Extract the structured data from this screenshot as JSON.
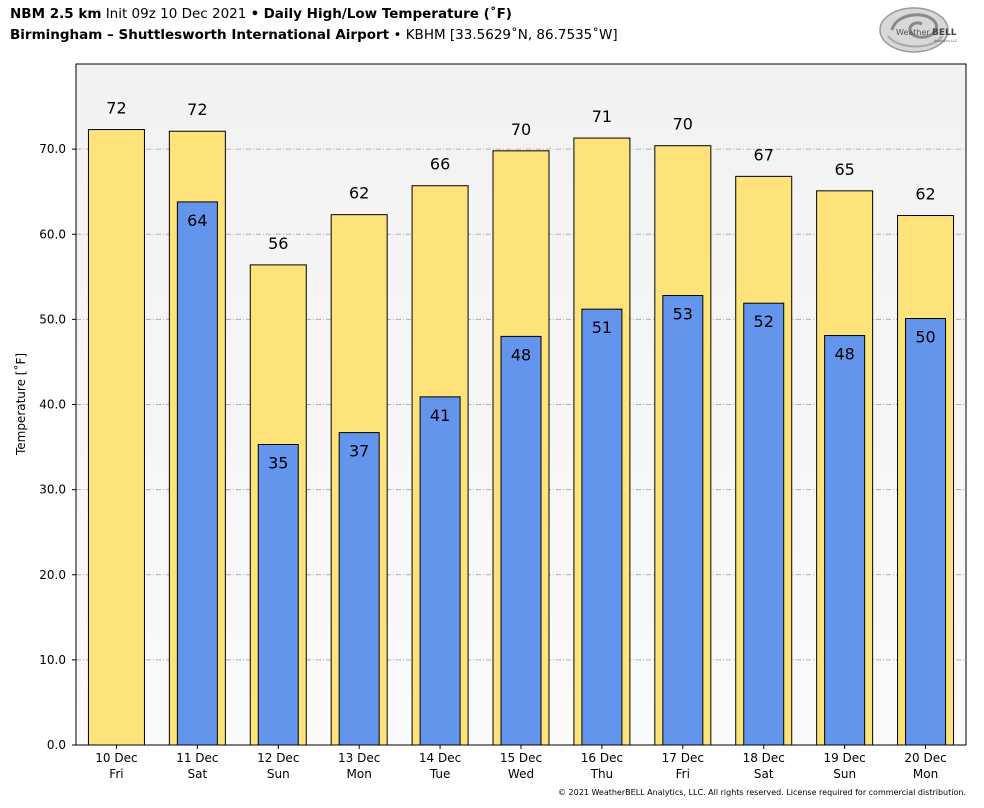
{
  "header": {
    "model": "NBM 2.5 km",
    "init": "Init 09z 10 Dec 2021",
    "sep1": "•",
    "product": "Daily High/Low Temperature (˚F)",
    "location": "Birmingham – Shuttlesworth International Airport",
    "sep2": "•",
    "station": "KBHM [33.5629˚N, 86.7535˚W]"
  },
  "logo": {
    "text_weather": "Weather",
    "text_bell": "BELL",
    "text_sub": "Analytics LLC"
  },
  "copyright": "© 2021 WeatherBELL Analytics, LLC. All rights reserved. License required for commercial distribution.",
  "colors": {
    "high": "#fee37b",
    "low": "#6495ed",
    "plot_bg_top": "#f2f2f2",
    "plot_bg_bottom": "#fafafa",
    "grid": "#b0b0b0"
  },
  "chart_data": {
    "type": "bar",
    "title": "Daily High/Low Temperature (˚F)",
    "ylabel": "Temperature [˚F]",
    "xlabel": "",
    "ylim": [
      0,
      80
    ],
    "yticks": [
      "0.0",
      "10.0",
      "20.0",
      "30.0",
      "40.0",
      "50.0",
      "60.0",
      "70.0"
    ],
    "grid": true,
    "categories": [
      [
        "10 Dec",
        "Fri"
      ],
      [
        "11 Dec",
        "Sat"
      ],
      [
        "12 Dec",
        "Sun"
      ],
      [
        "13 Dec",
        "Mon"
      ],
      [
        "14 Dec",
        "Tue"
      ],
      [
        "15 Dec",
        "Wed"
      ],
      [
        "16 Dec",
        "Thu"
      ],
      [
        "17 Dec",
        "Fri"
      ],
      [
        "18 Dec",
        "Sat"
      ],
      [
        "19 Dec",
        "Sun"
      ],
      [
        "20 Dec",
        "Mon"
      ]
    ],
    "series": [
      {
        "key": "high",
        "values": [
          72.3,
          72.1,
          56.4,
          62.3,
          65.7,
          69.8,
          71.3,
          70.4,
          66.8,
          65.1,
          62.2
        ],
        "labels": [
          "72",
          "72",
          "56",
          "62",
          "66",
          "70",
          "71",
          "70",
          "67",
          "65",
          "62"
        ]
      },
      {
        "key": "low",
        "values": [
          null,
          63.8,
          35.3,
          36.7,
          40.9,
          48.0,
          51.2,
          52.8,
          51.9,
          48.1,
          50.1
        ],
        "labels": [
          null,
          "64",
          "35",
          "37",
          "41",
          "48",
          "51",
          "53",
          "52",
          "48",
          "50"
        ]
      }
    ]
  }
}
